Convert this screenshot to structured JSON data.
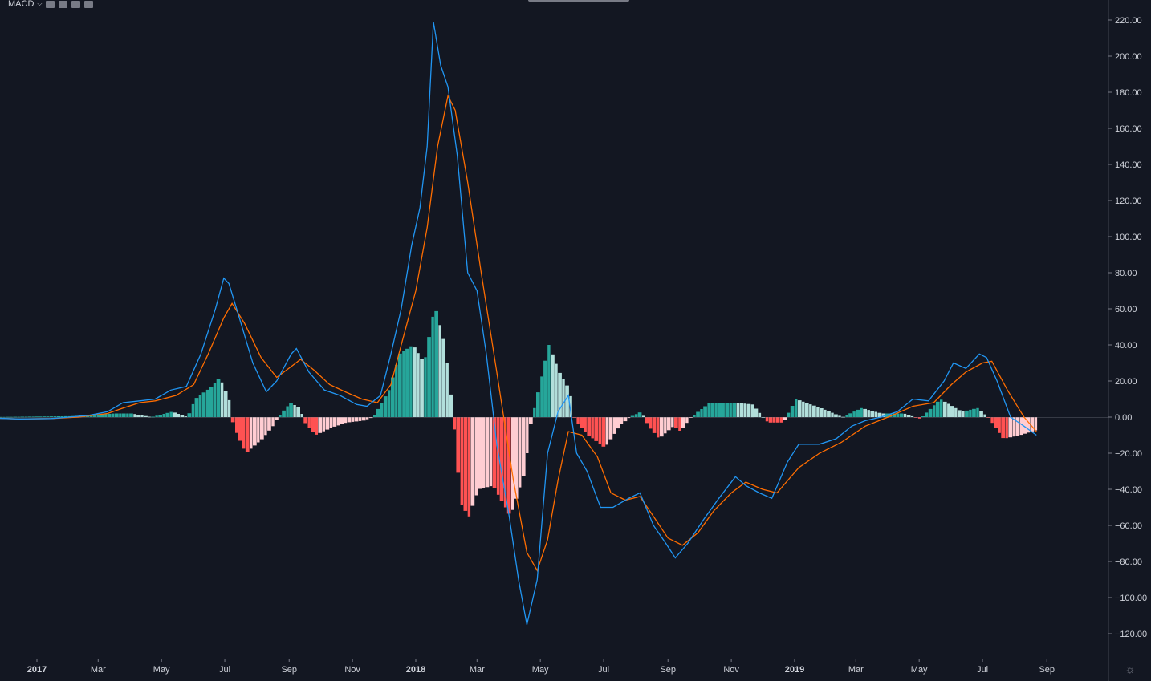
{
  "indicator": {
    "label": "MACD",
    "dropdown_icon": "chevron-down-icon",
    "buttons": [
      "eye-icon",
      "gear-icon",
      "code-icon",
      "close-icon"
    ]
  },
  "colors": {
    "background": "#131722",
    "macd_line": "#2196f3",
    "signal_line": "#ff6d00",
    "hist_pos_strong": "#26a69a",
    "hist_pos_weak": "#b2dfdb",
    "hist_neg_strong": "#ff5252",
    "hist_neg_weak": "#ffcdd2",
    "axis_text": "#d1d4dc"
  },
  "chart_data": {
    "type": "line",
    "x_unit": "date",
    "ylim": [
      -130,
      225
    ],
    "xlim": [
      "2016-11-15",
      "2019-10-10"
    ],
    "y_ticks": [
      "220.00",
      "200.00",
      "180.00",
      "160.00",
      "140.00",
      "120.00",
      "100.00",
      "80.00",
      "60.00",
      "40.00",
      "20.00",
      "0.00",
      "−20.00",
      "−40.00",
      "−60.00",
      "−80.00",
      "−100.00",
      "−120.00"
    ],
    "y_tick_values": [
      220,
      200,
      180,
      160,
      140,
      120,
      100,
      80,
      60,
      40,
      20,
      0,
      -20,
      -40,
      -60,
      -80,
      -100,
      -120
    ],
    "x_ticks": [
      {
        "label": "2017",
        "date": "2017-01-01",
        "year": true
      },
      {
        "label": "Mar",
        "date": "2017-03-01"
      },
      {
        "label": "May",
        "date": "2017-05-01"
      },
      {
        "label": "Jul",
        "date": "2017-07-01"
      },
      {
        "label": "Sep",
        "date": "2017-09-01"
      },
      {
        "label": "Nov",
        "date": "2017-11-01"
      },
      {
        "label": "2018",
        "date": "2018-01-01",
        "year": true
      },
      {
        "label": "Mar",
        "date": "2018-03-01"
      },
      {
        "label": "May",
        "date": "2018-05-01"
      },
      {
        "label": "Jul",
        "date": "2018-07-01"
      },
      {
        "label": "Sep",
        "date": "2018-09-01"
      },
      {
        "label": "Nov",
        "date": "2018-11-01"
      },
      {
        "label": "2019",
        "date": "2019-01-01",
        "year": true
      },
      {
        "label": "Mar",
        "date": "2019-03-01"
      },
      {
        "label": "May",
        "date": "2019-05-01"
      },
      {
        "label": "Jul",
        "date": "2019-07-01"
      },
      {
        "label": "Sep",
        "date": "2019-09-01"
      }
    ],
    "series": [
      {
        "name": "",
        "role": "macd",
        "points": [
          [
            "2016-11-15",
            -0.5
          ],
          [
            "2016-12-15",
            -1
          ],
          [
            "2017-01-15",
            -0.8
          ],
          [
            "2017-02-01",
            0
          ],
          [
            "2017-02-20",
            1
          ],
          [
            "2017-03-10",
            3
          ],
          [
            "2017-03-25",
            8
          ],
          [
            "2017-04-10",
            9
          ],
          [
            "2017-04-25",
            10
          ],
          [
            "2017-05-10",
            15
          ],
          [
            "2017-05-25",
            17
          ],
          [
            "2017-06-08",
            35
          ],
          [
            "2017-06-22",
            60
          ],
          [
            "2017-06-30",
            77
          ],
          [
            "2017-07-05",
            74
          ],
          [
            "2017-07-15",
            55
          ],
          [
            "2017-07-28",
            30
          ],
          [
            "2017-08-10",
            14
          ],
          [
            "2017-08-20",
            20
          ],
          [
            "2017-09-03",
            35
          ],
          [
            "2017-09-08",
            38
          ],
          [
            "2017-09-20",
            25
          ],
          [
            "2017-10-05",
            15
          ],
          [
            "2017-10-20",
            12
          ],
          [
            "2017-11-05",
            7
          ],
          [
            "2017-11-15",
            6
          ],
          [
            "2017-11-28",
            12
          ],
          [
            "2017-12-08",
            35
          ],
          [
            "2017-12-18",
            60
          ],
          [
            "2017-12-28",
            95
          ],
          [
            "2018-01-05",
            116
          ],
          [
            "2018-01-12",
            150
          ],
          [
            "2018-01-18",
            219
          ],
          [
            "2018-01-25",
            195
          ],
          [
            "2018-02-01",
            183
          ],
          [
            "2018-02-10",
            145
          ],
          [
            "2018-02-20",
            80
          ],
          [
            "2018-03-01",
            70
          ],
          [
            "2018-03-10",
            35
          ],
          [
            "2018-03-20",
            -15
          ],
          [
            "2018-04-01",
            -55
          ],
          [
            "2018-04-10",
            -90
          ],
          [
            "2018-04-18",
            -115
          ],
          [
            "2018-04-28",
            -90
          ],
          [
            "2018-05-08",
            -20
          ],
          [
            "2018-05-18",
            3
          ],
          [
            "2018-05-28",
            12
          ],
          [
            "2018-06-05",
            -20
          ],
          [
            "2018-06-15",
            -30
          ],
          [
            "2018-06-28",
            -50
          ],
          [
            "2018-07-10",
            -50
          ],
          [
            "2018-07-25",
            -45
          ],
          [
            "2018-08-05",
            -42
          ],
          [
            "2018-08-18",
            -60
          ],
          [
            "2018-08-30",
            -70
          ],
          [
            "2018-09-08",
            -78
          ],
          [
            "2018-09-20",
            -70
          ],
          [
            "2018-10-05",
            -57
          ],
          [
            "2018-10-20",
            -45
          ],
          [
            "2018-11-05",
            -33
          ],
          [
            "2018-11-15",
            -38
          ],
          [
            "2018-11-28",
            -42
          ],
          [
            "2018-12-10",
            -45
          ],
          [
            "2018-12-25",
            -25
          ],
          [
            "2019-01-05",
            -15
          ],
          [
            "2019-01-25",
            -15
          ],
          [
            "2019-02-10",
            -12
          ],
          [
            "2019-02-25",
            -5
          ],
          [
            "2019-03-10",
            -2
          ],
          [
            "2019-03-25",
            0
          ],
          [
            "2019-04-10",
            3
          ],
          [
            "2019-04-25",
            10
          ],
          [
            "2019-05-10",
            9
          ],
          [
            "2019-05-25",
            20
          ],
          [
            "2019-06-03",
            30
          ],
          [
            "2019-06-15",
            27
          ],
          [
            "2019-06-28",
            35
          ],
          [
            "2019-07-05",
            33
          ],
          [
            "2019-07-15",
            20
          ],
          [
            "2019-07-28",
            0
          ],
          [
            "2019-08-10",
            -5
          ],
          [
            "2019-08-22",
            -10
          ]
        ]
      },
      {
        "name": "",
        "role": "signal",
        "points": [
          [
            "2016-11-15",
            -0.5
          ],
          [
            "2016-12-15",
            -1
          ],
          [
            "2017-01-15",
            -0.8
          ],
          [
            "2017-02-10",
            0
          ],
          [
            "2017-03-10",
            2
          ],
          [
            "2017-03-25",
            5
          ],
          [
            "2017-04-10",
            8
          ],
          [
            "2017-04-25",
            9
          ],
          [
            "2017-05-15",
            12
          ],
          [
            "2017-06-01",
            18
          ],
          [
            "2017-06-15",
            35
          ],
          [
            "2017-06-30",
            55
          ],
          [
            "2017-07-08",
            63
          ],
          [
            "2017-07-20",
            52
          ],
          [
            "2017-08-05",
            33
          ],
          [
            "2017-08-20",
            22
          ],
          [
            "2017-09-03",
            28
          ],
          [
            "2017-09-12",
            32
          ],
          [
            "2017-09-25",
            26
          ],
          [
            "2017-10-10",
            18
          ],
          [
            "2017-10-25",
            14
          ],
          [
            "2017-11-10",
            10
          ],
          [
            "2017-11-25",
            8
          ],
          [
            "2017-12-08",
            18
          ],
          [
            "2017-12-18",
            40
          ],
          [
            "2018-01-01",
            70
          ],
          [
            "2018-01-12",
            105
          ],
          [
            "2018-01-22",
            150
          ],
          [
            "2018-02-01",
            178
          ],
          [
            "2018-02-08",
            170
          ],
          [
            "2018-02-20",
            130
          ],
          [
            "2018-03-05",
            80
          ],
          [
            "2018-03-20",
            25
          ],
          [
            "2018-04-05",
            -35
          ],
          [
            "2018-04-18",
            -75
          ],
          [
            "2018-04-28",
            -85
          ],
          [
            "2018-05-08",
            -68
          ],
          [
            "2018-05-18",
            -35
          ],
          [
            "2018-05-28",
            -8
          ],
          [
            "2018-06-10",
            -10
          ],
          [
            "2018-06-25",
            -22
          ],
          [
            "2018-07-08",
            -42
          ],
          [
            "2018-07-22",
            -46
          ],
          [
            "2018-08-05",
            -44
          ],
          [
            "2018-08-18",
            -55
          ],
          [
            "2018-09-01",
            -67
          ],
          [
            "2018-09-15",
            -71
          ],
          [
            "2018-09-30",
            -64
          ],
          [
            "2018-10-15",
            -52
          ],
          [
            "2018-11-01",
            -42
          ],
          [
            "2018-11-15",
            -36
          ],
          [
            "2018-12-01",
            -40
          ],
          [
            "2018-12-15",
            -42
          ],
          [
            "2019-01-05",
            -28
          ],
          [
            "2019-01-25",
            -20
          ],
          [
            "2019-02-15",
            -14
          ],
          [
            "2019-03-10",
            -5
          ],
          [
            "2019-04-01",
            0
          ],
          [
            "2019-04-25",
            6
          ],
          [
            "2019-05-15",
            8
          ],
          [
            "2019-06-01",
            18
          ],
          [
            "2019-06-15",
            25
          ],
          [
            "2019-07-01",
            30
          ],
          [
            "2019-07-10",
            31
          ],
          [
            "2019-07-25",
            15
          ],
          [
            "2019-08-10",
            0
          ],
          [
            "2019-08-22",
            -8
          ]
        ]
      },
      {
        "name": "",
        "role": "histogram",
        "points": [
          [
            "2016-11-15",
            0
          ],
          [
            "2017-02-01",
            0.5
          ],
          [
            "2017-03-15",
            2
          ],
          [
            "2017-04-01",
            2
          ],
          [
            "2017-04-20",
            0
          ],
          [
            "2017-05-10",
            3
          ],
          [
            "2017-05-25",
            0
          ],
          [
            "2017-06-01",
            10
          ],
          [
            "2017-06-15",
            16
          ],
          [
            "2017-06-25",
            22
          ],
          [
            "2017-07-05",
            8
          ],
          [
            "2017-07-08",
            -5
          ],
          [
            "2017-07-20",
            -20
          ],
          [
            "2017-08-05",
            -12
          ],
          [
            "2017-08-15",
            -5
          ],
          [
            "2017-08-20",
            0
          ],
          [
            "2017-09-01",
            8
          ],
          [
            "2017-09-10",
            5
          ],
          [
            "2017-09-15",
            -3
          ],
          [
            "2017-09-25",
            -10
          ],
          [
            "2017-10-10",
            -6
          ],
          [
            "2017-10-25",
            -3
          ],
          [
            "2017-11-10",
            -2
          ],
          [
            "2017-11-20",
            0
          ],
          [
            "2017-12-05",
            15
          ],
          [
            "2017-12-15",
            35
          ],
          [
            "2017-12-28",
            40
          ],
          [
            "2018-01-08",
            30
          ],
          [
            "2018-01-18",
            62
          ],
          [
            "2018-01-28",
            40
          ],
          [
            "2018-02-05",
            0
          ],
          [
            "2018-02-12",
            -48
          ],
          [
            "2018-02-20",
            -55
          ],
          [
            "2018-03-01",
            -40
          ],
          [
            "2018-03-15",
            -38
          ],
          [
            "2018-04-01",
            -55
          ],
          [
            "2018-04-15",
            -30
          ],
          [
            "2018-04-20",
            -5
          ],
          [
            "2018-04-28",
            15
          ],
          [
            "2018-05-08",
            40
          ],
          [
            "2018-05-18",
            25
          ],
          [
            "2018-05-28",
            15
          ],
          [
            "2018-06-02",
            -2
          ],
          [
            "2018-06-15",
            -10
          ],
          [
            "2018-07-01",
            -17
          ],
          [
            "2018-07-15",
            -5
          ],
          [
            "2018-07-25",
            0
          ],
          [
            "2018-08-05",
            3
          ],
          [
            "2018-08-12",
            -5
          ],
          [
            "2018-08-22",
            -12
          ],
          [
            "2018-09-05",
            -5
          ],
          [
            "2018-09-12",
            -8
          ],
          [
            "2018-09-22",
            0
          ],
          [
            "2018-10-10",
            8
          ],
          [
            "2018-11-05",
            8
          ],
          [
            "2018-11-20",
            7
          ],
          [
            "2018-12-05",
            -3
          ],
          [
            "2018-12-20",
            -3
          ],
          [
            "2019-01-01",
            10
          ],
          [
            "2019-01-25",
            5
          ],
          [
            "2019-02-15",
            0
          ],
          [
            "2019-03-05",
            5
          ],
          [
            "2019-03-25",
            2
          ],
          [
            "2019-04-15",
            2
          ],
          [
            "2019-05-01",
            -1
          ],
          [
            "2019-05-20",
            10
          ],
          [
            "2019-06-10",
            3
          ],
          [
            "2019-06-25",
            5
          ],
          [
            "2019-07-05",
            0
          ],
          [
            "2019-07-20",
            -12
          ],
          [
            "2019-08-05",
            -10
          ],
          [
            "2019-08-22",
            -7
          ]
        ]
      }
    ],
    "grid": false,
    "legend": "top-left"
  }
}
